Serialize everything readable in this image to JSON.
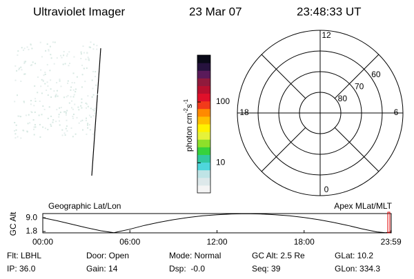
{
  "header": {
    "title": "Ultraviolet Imager",
    "date": "23 Mar 07",
    "time": "23:48:33 UT"
  },
  "colorbar": {
    "label": "photon cm",
    "exp1": "-2",
    "unit2": "s",
    "exp2": "-1",
    "log_scale": true,
    "clim": [
      3.2,
      590
    ],
    "ticks": [
      10,
      100
    ],
    "colors": [
      "#f4f4f4",
      "#dde8ea",
      "#bfe4e6",
      "#4fd6dc",
      "#32c8a0",
      "#36d23c",
      "#8ee02a",
      "#e6f23a",
      "#fff200",
      "#ffbf00",
      "#ff8a00",
      "#f23a1a",
      "#e0102a",
      "#b8102e",
      "#901a3c",
      "#5a1a5a",
      "#26123e",
      "#0a0a18"
    ]
  },
  "polar": {
    "rlim": [
      90,
      50
    ],
    "rings": [
      60,
      70,
      80
    ],
    "mlt_ticks": [
      0,
      6,
      12,
      18
    ]
  },
  "track": {
    "left_label": "Geographic Lat/Lon",
    "right_label": "Apex MLat/MLT",
    "ylabel": "GC Alt",
    "ylim": [
      1.1,
      11.2
    ],
    "yticks": [
      1.8,
      {
        "value": 9,
        "label": "9.0"
      }
    ],
    "xlim": [
      0,
      24
    ],
    "xticks": [
      {
        "value": 0,
        "label": "00:00"
      },
      {
        "value": 6,
        "label": "06:00"
      },
      {
        "value": 12,
        "label": "12:00"
      },
      {
        "value": 18,
        "label": "18:00"
      },
      {
        "value": 23.983,
        "label": "23:59"
      }
    ],
    "hours": [
      0,
      1,
      2,
      3,
      4,
      4.9,
      6,
      7,
      8,
      9,
      10,
      11,
      12,
      13,
      14,
      15,
      16,
      17,
      18,
      19,
      20,
      21,
      22,
      23,
      23.6,
      23.98
    ],
    "altitude": [
      9.0,
      7.4,
      5.6,
      3.8,
      2.2,
      1.2,
      3.0,
      5.0,
      6.6,
      8.0,
      9.1,
      10.0,
      10.6,
      11.0,
      11.1,
      11.0,
      10.6,
      10.0,
      9.1,
      8.0,
      6.6,
      5.0,
      3.2,
      1.6,
      1.2,
      1.5
    ],
    "current_hour": 23.809,
    "line_color": "#000000",
    "marker_color": "#e00000"
  },
  "footer": {
    "rows": [
      [
        "Flt: LBHL",
        "Door: Open",
        "Mode: Normal",
        "GC Alt: 2.5 Re",
        "GLat: 10.2"
      ],
      [
        "IP: 36.0",
        "Gain: 14",
        "Dsp:  -0.0",
        "Seq: 39",
        "GLon: 334.3"
      ]
    ]
  }
}
